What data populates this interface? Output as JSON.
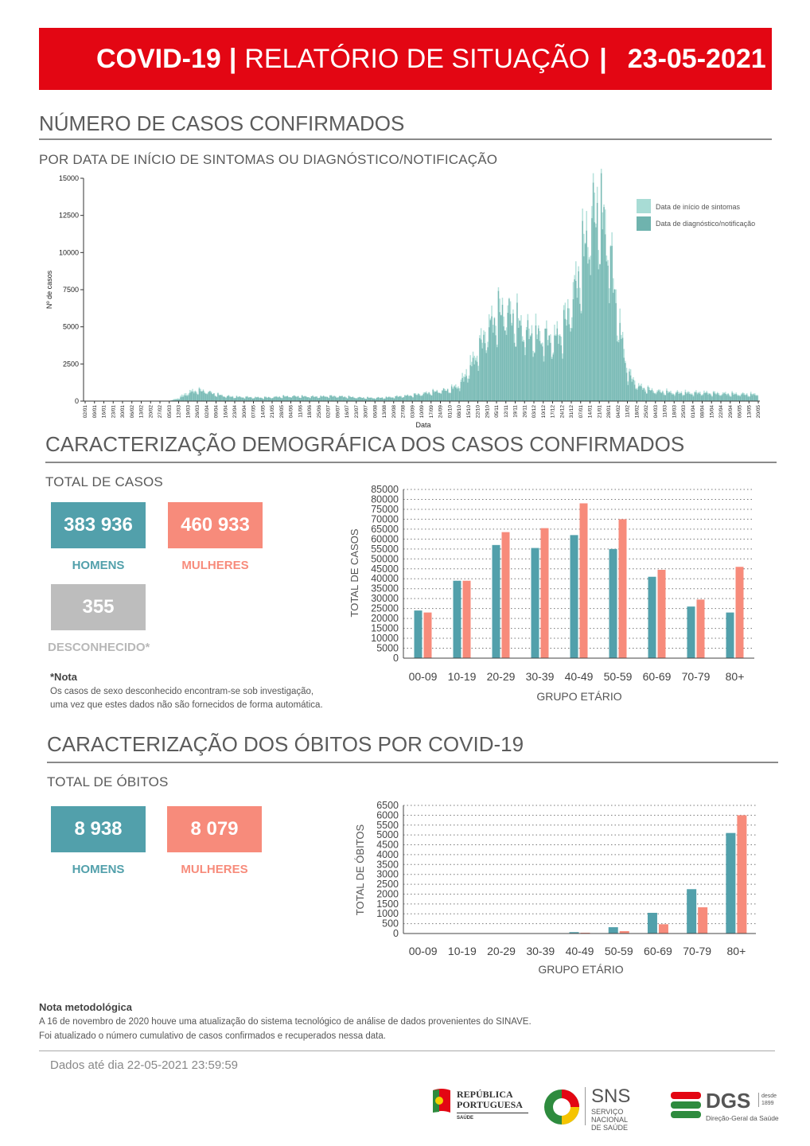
{
  "header": {
    "title_part1": "COVID-19",
    "sep1": "|",
    "title_part2": "RELATÓRIO DE SITUAÇÃO",
    "sep2": "|",
    "date": "23-05-2021"
  },
  "colors": {
    "red": "#e30613",
    "teal": "#52a0ab",
    "salmon": "#f78b7b",
    "grey": "#bdbdbd",
    "onset": "#a8dcd5",
    "diag": "#6fb3ae"
  },
  "section1": {
    "title": "NÚMERO DE CASOS CONFIRMADOS",
    "subtitle": "POR DATA DE INÍCIO DE SINTOMAS OU DIAGNÓSTICO/NOTIFICAÇÃO"
  },
  "section2": {
    "title": "CARACTERIZAÇÃO DEMOGRÁFICA DOS CASOS CONFIRMADOS",
    "total_label": "TOTAL DE CASOS",
    "men_value": "383 936",
    "men_label": "HOMENS",
    "women_value": "460 933",
    "women_label": "MULHERES",
    "unknown_value": "355",
    "unknown_label": "DESCONHECIDO*",
    "note_title": "*Nota",
    "note_line1": "Os casos de sexo desconhecido encontram-se sob investigação,",
    "note_line2": "uma vez que estes dados não são fornecidos de forma automática."
  },
  "section3": {
    "title": "CARACTERIZAÇÃO DOS ÓBITOS POR COVID-19",
    "total_label": "TOTAL DE ÓBITOS",
    "men_value": "8 938",
    "men_label": "HOMENS",
    "women_value": "8 079",
    "women_label": "MULHERES"
  },
  "methodology": {
    "title": "Nota metodológica",
    "line1": "A 16 de novembro de 2020 houve uma atualização do sistema tecnológico de análise de dados provenientes do SINAVE.",
    "line2": "Foi atualizado o número cumulativo de casos confirmados e recuperados nessa data."
  },
  "footer": {
    "data_until": "Dados até dia 22-05-2021 23:59:59",
    "logo1_line1": "REPÚBLICA",
    "logo1_line2": "PORTUGUESA",
    "logo1_line3": "SAÚDE",
    "logo2_name": "SNS",
    "logo2_line1": "SERVIÇO NACIONAL",
    "logo2_line2": "DE SAÚDE",
    "logo3_name": "DGS",
    "logo3_small1": "desde",
    "logo3_small2": "1899",
    "logo3_sub": "Direção-Geral da Saúde"
  },
  "chart_data": [
    {
      "type": "bar",
      "title": "",
      "xlabel": "Data",
      "ylabel": "Nº de casos",
      "ylim": [
        0,
        15000
      ],
      "yticks": [
        0,
        2500,
        5000,
        7500,
        10000,
        12500,
        15000
      ],
      "legend": [
        "Data de início de sintomas",
        "Data de diagnóstico/notificação"
      ],
      "legend_position": "top-right",
      "date_labels": [
        "02/01",
        "09/01",
        "16/01",
        "23/01",
        "30/01",
        "06/02",
        "13/02",
        "20/02",
        "27/02",
        "05/03",
        "12/03",
        "19/03",
        "26/03",
        "02/04",
        "09/04",
        "16/04",
        "23/04",
        "30/04",
        "07/05",
        "14/05",
        "21/05",
        "28/05",
        "04/06",
        "11/06",
        "18/06",
        "25/06",
        "02/07",
        "09/07",
        "16/07",
        "23/07",
        "30/07",
        "06/08",
        "13/08",
        "20/08",
        "27/08",
        "03/09",
        "10/09",
        "17/09",
        "24/09",
        "01/10",
        "08/10",
        "15/10",
        "22/10",
        "29/10",
        "05/11",
        "12/11",
        "19/11",
        "26/11",
        "03/12",
        "10/12",
        "17/12",
        "24/12",
        "31/12",
        "07/01",
        "14/01",
        "21/01",
        "28/01",
        "04/02",
        "11/02",
        "18/02",
        "25/02",
        "04/03",
        "11/03",
        "18/03",
        "25/03",
        "01/04",
        "08/04",
        "15/04",
        "22/04",
        "29/04",
        "06/05",
        "13/05",
        "20/05"
      ],
      "weekly_onset": [
        0,
        0,
        0,
        0,
        0,
        0,
        0,
        0,
        0,
        20,
        250,
        650,
        750,
        650,
        450,
        350,
        300,
        280,
        260,
        250,
        270,
        320,
        330,
        320,
        300,
        310,
        340,
        330,
        300,
        250,
        230,
        220,
        250,
        300,
        350,
        420,
        520,
        620,
        700,
        800,
        1200,
        2300,
        3600,
        5000,
        6000,
        6200,
        5600,
        4800,
        4600,
        4400,
        4200,
        5000,
        7000,
        9500,
        12500,
        13500,
        10500,
        5500,
        2000,
        1100,
        850,
        700,
        650,
        600,
        600,
        580,
        600,
        560,
        540,
        520,
        500,
        480,
        480
      ],
      "weekly_diagnosis": [
        0,
        0,
        0,
        0,
        0,
        0,
        0,
        0,
        0,
        10,
        150,
        500,
        650,
        600,
        420,
        300,
        260,
        250,
        230,
        220,
        240,
        280,
        300,
        300,
        280,
        280,
        310,
        300,
        270,
        230,
        210,
        200,
        220,
        260,
        320,
        380,
        450,
        560,
        650,
        750,
        1000,
        1900,
        3200,
        4500,
        5600,
        5800,
        5200,
        4400,
        4200,
        4100,
        3900,
        4500,
        6200,
        8800,
        11500,
        12500,
        9800,
        5000,
        1700,
        950,
        750,
        600,
        550,
        500,
        500,
        480,
        500,
        470,
        450,
        430,
        420,
        400,
        400
      ]
    },
    {
      "type": "bar",
      "title": "",
      "xlabel": "GRUPO ETÁRIO",
      "ylabel": "TOTAL DE CASOS",
      "ylim": [
        0,
        85000
      ],
      "yticks": [
        0,
        5000,
        10000,
        15000,
        20000,
        25000,
        30000,
        35000,
        40000,
        45000,
        50000,
        55000,
        60000,
        65000,
        70000,
        75000,
        80000,
        85000
      ],
      "categories": [
        "00-09",
        "10-19",
        "20-29",
        "30-39",
        "40-49",
        "50-59",
        "60-69",
        "70-79",
        "80+"
      ],
      "series": [
        {
          "name": "HOMENS",
          "values": [
            24000,
            39000,
            57000,
            55500,
            62000,
            55000,
            41000,
            26000,
            23000
          ]
        },
        {
          "name": "MULHERES",
          "values": [
            23000,
            39000,
            63500,
            65500,
            78000,
            70000,
            44500,
            29500,
            46000
          ]
        }
      ]
    },
    {
      "type": "bar",
      "title": "",
      "xlabel": "GRUPO ETÁRIO",
      "ylabel": "TOTAL DE ÓBITOS",
      "ylim": [
        0,
        6500
      ],
      "yticks": [
        0,
        500,
        1000,
        1500,
        2000,
        2500,
        3000,
        3500,
        4000,
        4500,
        5000,
        5500,
        6000,
        6500
      ],
      "categories": [
        "00-09",
        "10-19",
        "20-29",
        "30-39",
        "40-49",
        "50-59",
        "60-69",
        "70-79",
        "80+"
      ],
      "series": [
        {
          "name": "HOMENS",
          "values": [
            0,
            0,
            5,
            15,
            70,
            320,
            1050,
            2250,
            5100
          ]
        },
        {
          "name": "MULHERES",
          "values": [
            0,
            0,
            5,
            10,
            40,
            120,
            470,
            1330,
            6000
          ]
        }
      ]
    }
  ]
}
